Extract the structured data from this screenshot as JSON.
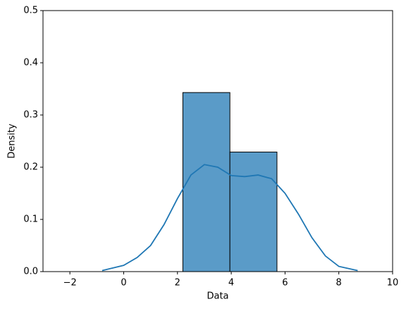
{
  "chart_data": {
    "type": "histogram",
    "xlabel": "Data",
    "ylabel": "Density",
    "bins": [
      2.2,
      3.95,
      5.7
    ],
    "values": [
      0.343,
      0.229
    ],
    "color": "#5a9bc8",
    "edgecolor": "#000000",
    "kde": {
      "color": "#1f77b4",
      "x": [
        -0.8,
        0,
        0.5,
        1,
        1.5,
        2,
        2.5,
        3,
        3.5,
        4,
        4.5,
        5,
        5.5,
        6,
        6.5,
        7,
        7.5,
        8,
        8.7
      ],
      "values": [
        0.002,
        0.012,
        0.027,
        0.05,
        0.09,
        0.14,
        0.185,
        0.205,
        0.2,
        0.184,
        0.182,
        0.185,
        0.178,
        0.15,
        0.11,
        0.065,
        0.03,
        0.01,
        0.002
      ]
    },
    "xlim": [
      -3,
      10
    ],
    "ylim": [
      0,
      0.5
    ],
    "xticks": [
      {
        "value": -2,
        "label": "−2"
      },
      0,
      2,
      4,
      6,
      8,
      10
    ],
    "yticks": [
      {
        "value": 0,
        "label": "0.0"
      },
      {
        "value": 0.1,
        "label": "0.1"
      },
      {
        "value": 0.2,
        "label": "0.2"
      },
      {
        "value": 0.3,
        "label": "0.3"
      },
      {
        "value": 0.4,
        "label": "0.4"
      },
      {
        "value": 0.5,
        "label": "0.5"
      }
    ]
  }
}
